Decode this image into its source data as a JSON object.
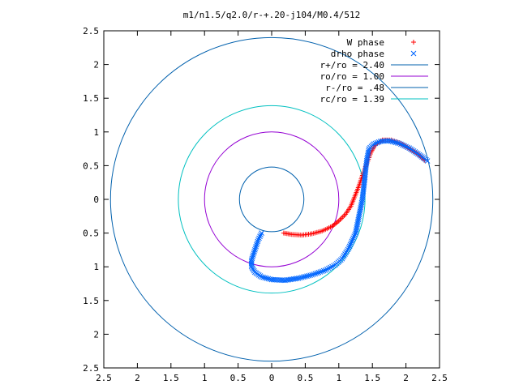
{
  "chart_data": {
    "type": "scatter",
    "title": "m1/n1.5/q2.0/r-+.20-j104/M0.4/512",
    "xlim": [
      -2.5,
      2.5
    ],
    "ylim": [
      -2.5,
      2.5
    ],
    "x_tick_values": [
      -2.5,
      -2,
      -1.5,
      -1,
      -0.5,
      0,
      0.5,
      1,
      1.5,
      2,
      2.5
    ],
    "x_tick_labels": [
      "2.5",
      "2",
      "1.5",
      "1",
      "0.5",
      "0",
      "0.5",
      "1",
      "1.5",
      "2",
      "2.5"
    ],
    "y_tick_values": [
      2.5,
      2,
      1.5,
      1,
      0.5,
      0,
      -0.5,
      -1,
      -1.5,
      -2,
      -2.5
    ],
    "y_tick_labels": [
      "2.5",
      "2",
      "1.5",
      "1",
      "0.5",
      "0",
      "0.5",
      "1",
      "1.5",
      "2",
      "2.5"
    ],
    "grid": false,
    "legend_position": "top-right",
    "series": [
      {
        "name": "W phase",
        "marker": "plus",
        "color": "#ff0000",
        "points": [
          [
            0.18,
            -0.5
          ],
          [
            0.3,
            -0.52
          ],
          [
            0.45,
            -0.53
          ],
          [
            0.6,
            -0.51
          ],
          [
            0.75,
            -0.47
          ],
          [
            0.9,
            -0.4
          ],
          [
            1.0,
            -0.32
          ],
          [
            1.1,
            -0.22
          ],
          [
            1.18,
            -0.1
          ],
          [
            1.24,
            0.05
          ],
          [
            1.3,
            0.2
          ],
          [
            1.36,
            0.38
          ],
          [
            1.42,
            0.54
          ],
          [
            1.48,
            0.7
          ],
          [
            1.55,
            0.82
          ],
          [
            1.65,
            0.88
          ],
          [
            1.78,
            0.88
          ],
          [
            1.92,
            0.83
          ],
          [
            2.05,
            0.75
          ],
          [
            2.18,
            0.67
          ],
          [
            2.28,
            0.58
          ]
        ]
      },
      {
        "name": "drho phase",
        "marker": "cross",
        "color": "#0066ff",
        "points": [
          [
            -0.15,
            -0.5
          ],
          [
            -0.2,
            -0.6
          ],
          [
            -0.25,
            -0.75
          ],
          [
            -0.3,
            -0.9
          ],
          [
            -0.3,
            -1.0
          ],
          [
            -0.25,
            -1.08
          ],
          [
            -0.15,
            -1.15
          ],
          [
            0.0,
            -1.19
          ],
          [
            0.2,
            -1.2
          ],
          [
            0.4,
            -1.17
          ],
          [
            0.6,
            -1.12
          ],
          [
            0.8,
            -1.05
          ],
          [
            0.95,
            -0.97
          ],
          [
            1.05,
            -0.88
          ],
          [
            1.15,
            -0.72
          ],
          [
            1.25,
            -0.5
          ],
          [
            1.3,
            -0.25
          ],
          [
            1.35,
            0.0
          ],
          [
            1.38,
            0.25
          ],
          [
            1.4,
            0.45
          ],
          [
            1.42,
            0.6
          ],
          [
            1.45,
            0.75
          ],
          [
            1.52,
            0.82
          ],
          [
            1.62,
            0.86
          ],
          [
            1.75,
            0.87
          ],
          [
            1.9,
            0.83
          ],
          [
            2.05,
            0.76
          ],
          [
            2.2,
            0.66
          ],
          [
            2.32,
            0.57
          ]
        ]
      },
      {
        "name": "r+/ro = 2.40",
        "shape": "circle",
        "radius": 2.4,
        "color": "#0060ad"
      },
      {
        "name": "ro/ro = 1.00",
        "shape": "circle",
        "radius": 1.0,
        "color": "#9400d3"
      },
      {
        "name": "r-/ro = .48",
        "shape": "circle",
        "radius": 0.48,
        "color": "#0060ad"
      },
      {
        "name": "rc/ro = 1.39",
        "shape": "circle",
        "radius": 1.39,
        "color": "#00c0c0"
      }
    ]
  }
}
